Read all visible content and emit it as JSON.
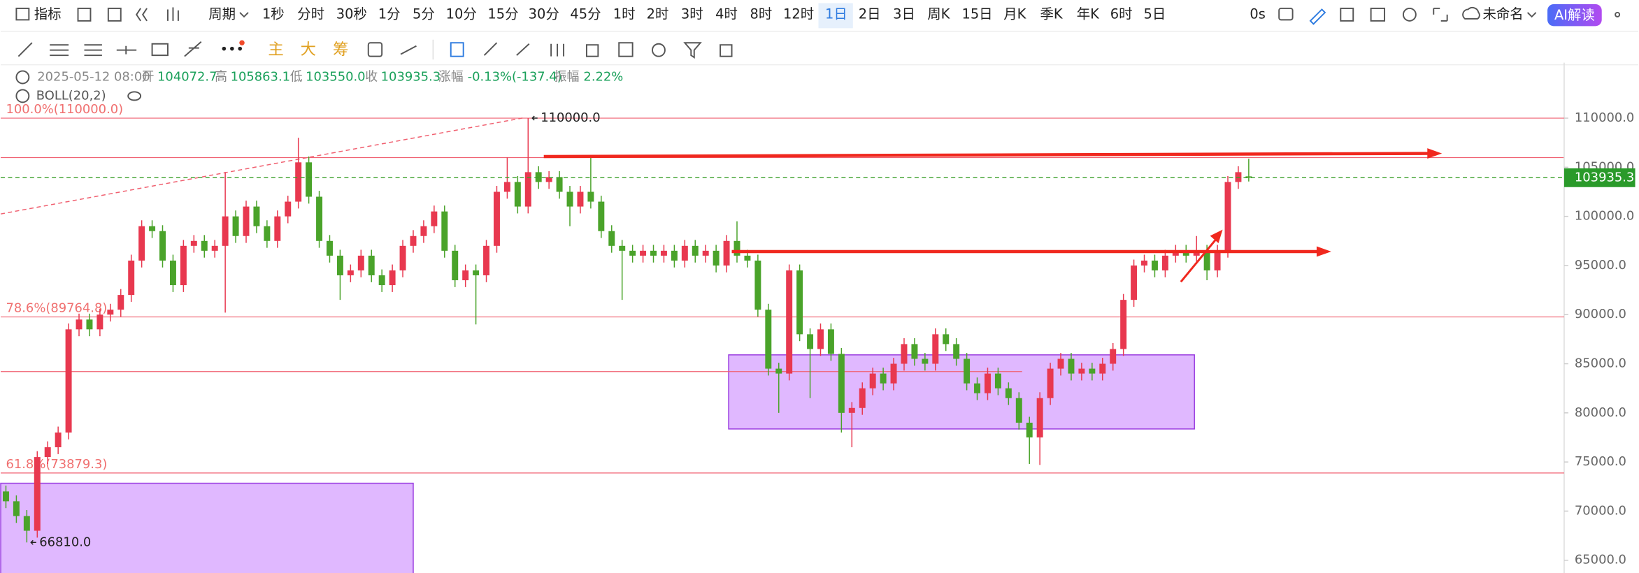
{
  "toolbar": {
    "indicator": "指标",
    "period": "周期",
    "intervals": [
      "1秒",
      "分时",
      "30秒",
      "1分",
      "5分",
      "10分",
      "15分",
      "30分",
      "45分",
      "1时",
      "2时",
      "3时",
      "4时",
      "8时",
      "12时",
      "1日",
      "2日",
      "3日",
      "周K",
      "15日",
      "月K",
      "季K",
      "年K",
      "6时",
      "5日"
    ],
    "timer": "0s",
    "workspace": "未命名",
    "ai_button": "AI解读"
  },
  "drawing_toolbar": {
    "main": "主",
    "big": "大",
    "chips": "筹"
  },
  "legend": {
    "datetime": "2025-05-12 08:00",
    "open_label": "开",
    "open": "104072.7",
    "high_label": "高",
    "high": "105863.1",
    "low_label": "低",
    "low": "103550.0",
    "close_label": "收",
    "close": "103935.3",
    "change_label": "涨幅",
    "change": "-0.13%(-137.4)",
    "amplitude_label": "振幅",
    "amplitude": "2.22%",
    "indicator": "BOLL(20,2)"
  },
  "chart_data": {
    "type": "candlestick",
    "up_color": "#e8384f",
    "down_color": "#4aa32a",
    "ylim": [
      63700,
      111400
    ],
    "yticks": [
      {
        "value": 65000,
        "label": "65000.0"
      },
      {
        "value": 70000,
        "label": "70000.0"
      },
      {
        "value": 75000,
        "label": "75000.0"
      },
      {
        "value": 80000,
        "label": "80000.0"
      },
      {
        "value": 85000,
        "label": "85000.0"
      },
      {
        "value": 90000,
        "label": "90000.0"
      },
      {
        "value": 95000,
        "label": "95000.0"
      },
      {
        "value": 100000,
        "label": "100000.0"
      },
      {
        "value": 105000,
        "label": "105000.0"
      },
      {
        "value": 110000,
        "label": "110000.0"
      }
    ],
    "levels": [
      {
        "value": 110000,
        "label": "100.0%(110000.0)"
      },
      {
        "value": 89764.8,
        "label": "78.6%(89764.8)"
      },
      {
        "value": 73879.3,
        "label": "61.8%(73879.3)"
      }
    ],
    "annotations": [
      {
        "index": 50,
        "value": 110000,
        "label": "110000.0"
      },
      {
        "index": 2,
        "value": 66810,
        "label": "66810.0"
      }
    ],
    "candles": [
      [
        72000,
        72600,
        70300,
        71000
      ],
      [
        71000,
        71600,
        68800,
        69500
      ],
      [
        69500,
        70100,
        66810,
        68000
      ],
      [
        68000,
        76100,
        67300,
        75500
      ],
      [
        75500,
        77100,
        74800,
        76500
      ],
      [
        76500,
        78600,
        75800,
        78000
      ],
      [
        78000,
        89100,
        77300,
        88500
      ],
      [
        88500,
        90100,
        87800,
        89500
      ],
      [
        89500,
        90100,
        87800,
        88500
      ],
      [
        88500,
        90600,
        87800,
        90000
      ],
      [
        90000,
        91100,
        89300,
        90500
      ],
      [
        90500,
        92600,
        89800,
        92000
      ],
      [
        92000,
        96100,
        91300,
        95500
      ],
      [
        95500,
        99600,
        94800,
        99000
      ],
      [
        99000,
        99600,
        97800,
        98500
      ],
      [
        98500,
        99100,
        94800,
        95500
      ],
      [
        95500,
        96100,
        92300,
        93000
      ],
      [
        93000,
        97600,
        92300,
        97000
      ],
      [
        97000,
        98100,
        96300,
        97500
      ],
      [
        97500,
        98100,
        95800,
        96500
      ],
      [
        96500,
        97600,
        95800,
        97000
      ],
      [
        97000,
        104500,
        90200,
        100000
      ],
      [
        100000,
        100600,
        97300,
        98000
      ],
      [
        98000,
        101600,
        97300,
        101000
      ],
      [
        101000,
        101600,
        98300,
        99000
      ],
      [
        99000,
        99600,
        96800,
        97500
      ],
      [
        97500,
        100600,
        96800,
        100000
      ],
      [
        100000,
        102100,
        99300,
        101500
      ],
      [
        101500,
        108000,
        100800,
        105500
      ],
      [
        105500,
        106100,
        101300,
        102000
      ],
      [
        102000,
        102600,
        96800,
        97500
      ],
      [
        97500,
        98100,
        95300,
        96000
      ],
      [
        96000,
        96600,
        91500,
        94000
      ],
      [
        94000,
        95100,
        93300,
        94500
      ],
      [
        94500,
        96600,
        93800,
        96000
      ],
      [
        96000,
        96600,
        93300,
        94000
      ],
      [
        94000,
        94600,
        92300,
        93000
      ],
      [
        93000,
        95100,
        92300,
        94500
      ],
      [
        94500,
        97600,
        93800,
        97000
      ],
      [
        97000,
        98600,
        96300,
        98000
      ],
      [
        98000,
        99600,
        97300,
        99000
      ],
      [
        99000,
        101100,
        98300,
        100500
      ],
      [
        100500,
        101100,
        95800,
        96500
      ],
      [
        96500,
        97100,
        92800,
        93500
      ],
      [
        93500,
        95100,
        92800,
        94500
      ],
      [
        94500,
        95100,
        89000,
        94000
      ],
      [
        94000,
        97600,
        93300,
        97000
      ],
      [
        97000,
        103100,
        96300,
        102500
      ],
      [
        102500,
        106000,
        101800,
        103500
      ],
      [
        103500,
        104100,
        100300,
        101000
      ],
      [
        101000,
        110000,
        100300,
        104500
      ],
      [
        104500,
        105100,
        102800,
        103500
      ],
      [
        103500,
        104600,
        102800,
        104000
      ],
      [
        104000,
        104600,
        101800,
        102500
      ],
      [
        102500,
        103100,
        99000,
        101000
      ],
      [
        101000,
        103100,
        100300,
        102500
      ],
      [
        102500,
        106000,
        100800,
        101500
      ],
      [
        101500,
        102100,
        97800,
        98500
      ],
      [
        98500,
        99100,
        96300,
        97000
      ],
      [
        97000,
        97600,
        91500,
        96500
      ],
      [
        96500,
        97100,
        95300,
        96000
      ],
      [
        96000,
        97100,
        95300,
        96500
      ],
      [
        96500,
        97100,
        95300,
        96000
      ],
      [
        96000,
        97100,
        95300,
        96500
      ],
      [
        96500,
        97100,
        94800,
        95500
      ],
      [
        95500,
        97600,
        94800,
        97000
      ],
      [
        97000,
        97600,
        95300,
        96000
      ],
      [
        96000,
        97100,
        95300,
        96500
      ],
      [
        96500,
        97100,
        94300,
        95000
      ],
      [
        95000,
        98100,
        94300,
        97500
      ],
      [
        97500,
        99500,
        95300,
        96000
      ],
      [
        96000,
        96600,
        94800,
        95500
      ],
      [
        95500,
        96100,
        89800,
        90500
      ],
      [
        90500,
        91100,
        83800,
        84500
      ],
      [
        84500,
        85100,
        80000,
        84000
      ],
      [
        84000,
        95100,
        83300,
        94500
      ],
      [
        94500,
        95100,
        87300,
        88000
      ],
      [
        88000,
        88600,
        81500,
        86500
      ],
      [
        86500,
        89100,
        85800,
        88500
      ],
      [
        88500,
        89100,
        85300,
        86000
      ],
      [
        86000,
        86600,
        78000,
        80000
      ],
      [
        80000,
        81100,
        76500,
        80500
      ],
      [
        80500,
        83100,
        79800,
        82500
      ],
      [
        82500,
        84600,
        81800,
        84000
      ],
      [
        84000,
        84600,
        82300,
        83000
      ],
      [
        83000,
        85600,
        82300,
        85000
      ],
      [
        85000,
        87600,
        84300,
        87000
      ],
      [
        87000,
        87600,
        84800,
        85500
      ],
      [
        85500,
        86100,
        84300,
        85000
      ],
      [
        85000,
        88600,
        84300,
        88000
      ],
      [
        88000,
        88600,
        86300,
        87000
      ],
      [
        87000,
        87600,
        84800,
        85500
      ],
      [
        85500,
        86100,
        82300,
        83000
      ],
      [
        83000,
        83600,
        81300,
        82000
      ],
      [
        82000,
        84600,
        81300,
        84000
      ],
      [
        84000,
        84600,
        81800,
        82500
      ],
      [
        82500,
        83100,
        80800,
        81500
      ],
      [
        81500,
        82100,
        78300,
        79000
      ],
      [
        79000,
        79600,
        74800,
        77500
      ],
      [
        77500,
        82100,
        74700,
        81500
      ],
      [
        81500,
        85100,
        80800,
        84500
      ],
      [
        84500,
        86100,
        83800,
        85500
      ],
      [
        85500,
        86100,
        83300,
        84000
      ],
      [
        84000,
        85100,
        83300,
        84500
      ],
      [
        84500,
        85100,
        83300,
        84000
      ],
      [
        84000,
        85600,
        83300,
        85000
      ],
      [
        85000,
        87100,
        84300,
        86500
      ],
      [
        86500,
        92100,
        85800,
        91500
      ],
      [
        91500,
        95600,
        90800,
        95000
      ],
      [
        95000,
        96100,
        94300,
        95500
      ],
      [
        95500,
        96100,
        93800,
        94500
      ],
      [
        94500,
        96600,
        93800,
        96000
      ],
      [
        96000,
        97100,
        95300,
        96500
      ],
      [
        96500,
        97100,
        95300,
        96000
      ],
      [
        96000,
        98000,
        95300,
        96500
      ],
      [
        96500,
        97100,
        93500,
        94500
      ],
      [
        94500,
        97100,
        93800,
        96500
      ],
      [
        96500,
        104100,
        95800,
        103500
      ],
      [
        103500,
        105100,
        102800,
        104500
      ],
      [
        104072.7,
        105863.1,
        103550,
        103935.3
      ]
    ]
  }
}
